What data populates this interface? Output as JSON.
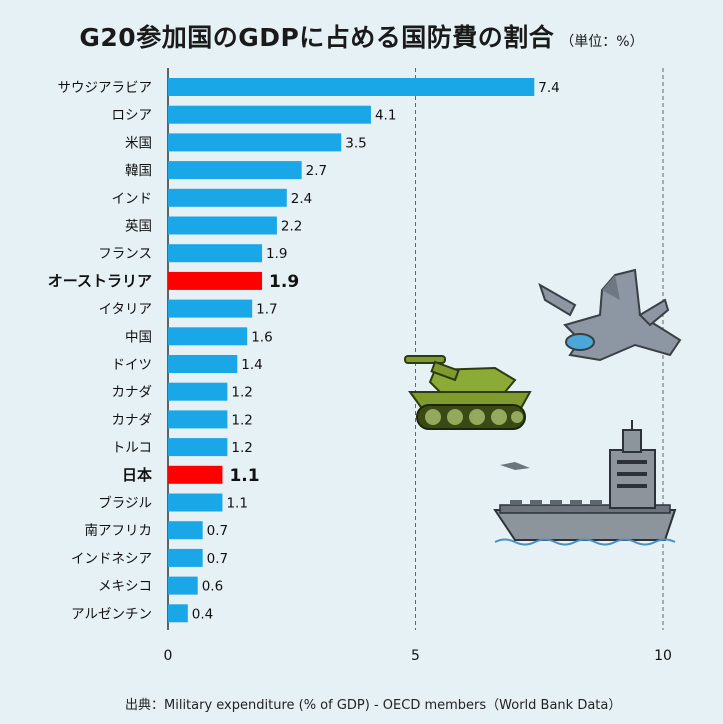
{
  "title": "G20参加国のGDPに占める国防費の割合",
  "unit_note": "（単位：%）",
  "source": "出典：Military expenditure (% of GDP) - OECD members（World Bank Data）",
  "colors": {
    "default_bar": "#1aa7e8",
    "highlight_bar": "#ff0000",
    "background": "#e6f1f5",
    "gridline": "#666666",
    "axis": "#333333"
  },
  "chart_data": {
    "type": "bar",
    "orientation": "horizontal",
    "categories": [
      "サウジアラビア",
      "ロシア",
      "米国",
      "韓国",
      "インド",
      "英国",
      "フランス",
      "オーストラリア",
      "イタリア",
      "中国",
      "ドイツ",
      "カナダ",
      "カナダ",
      "トルコ",
      "日本",
      "ブラジル",
      "南アフリカ",
      "インドネシア",
      "メキシコ",
      "アルゼンチン"
    ],
    "values": [
      7.4,
      4.1,
      3.5,
      2.7,
      2.4,
      2.2,
      1.9,
      1.9,
      1.7,
      1.6,
      1.4,
      1.2,
      1.2,
      1.2,
      1.1,
      1.1,
      0.7,
      0.7,
      0.6,
      0.4
    ],
    "highlighted": [
      "オーストラリア",
      "日本"
    ],
    "xlim": [
      0,
      10
    ],
    "xticks": [
      0,
      5,
      10
    ],
    "grid": "vertical dashed at 5 and 10",
    "legend": "none"
  },
  "illustrations": [
    "fighter-jet",
    "tank",
    "aircraft-carrier"
  ]
}
